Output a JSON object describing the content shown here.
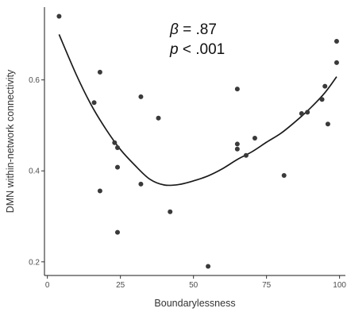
{
  "chart_data": {
    "type": "scatter",
    "xlabel": "Boundarylessness",
    "ylabel": "DMN within-network connectivity",
    "xlim": [
      -1,
      102
    ],
    "ylim": [
      0.17,
      0.76
    ],
    "x_ticks": [
      0,
      25,
      50,
      75,
      100
    ],
    "x_tick_labels": [
      "0",
      "25",
      "50",
      "75",
      "100"
    ],
    "y_ticks": [
      0.2,
      0.4,
      0.6
    ],
    "y_tick_labels": [
      "0.2",
      "0.4",
      "0.6"
    ],
    "grid": false,
    "annotations": [
      {
        "prefix": "β",
        "rest": " = .87"
      },
      {
        "prefix": "p",
        "rest": " < .001"
      }
    ],
    "point_color": "#3a3a3a",
    "line_color": "#1a1a1a",
    "points": [
      {
        "x": 4,
        "y": 0.74
      },
      {
        "x": 16,
        "y": 0.55
      },
      {
        "x": 18,
        "y": 0.617
      },
      {
        "x": 18,
        "y": 0.356
      },
      {
        "x": 23,
        "y": 0.462
      },
      {
        "x": 24,
        "y": 0.451
      },
      {
        "x": 24,
        "y": 0.408
      },
      {
        "x": 24,
        "y": 0.265
      },
      {
        "x": 32,
        "y": 0.563
      },
      {
        "x": 32,
        "y": 0.371
      },
      {
        "x": 38,
        "y": 0.516
      },
      {
        "x": 42,
        "y": 0.31
      },
      {
        "x": 55,
        "y": 0.19
      },
      {
        "x": 65,
        "y": 0.58
      },
      {
        "x": 65,
        "y": 0.459
      },
      {
        "x": 65,
        "y": 0.448
      },
      {
        "x": 68,
        "y": 0.434
      },
      {
        "x": 71,
        "y": 0.472
      },
      {
        "x": 81,
        "y": 0.39
      },
      {
        "x": 87,
        "y": 0.526
      },
      {
        "x": 89,
        "y": 0.529
      },
      {
        "x": 94,
        "y": 0.557
      },
      {
        "x": 95,
        "y": 0.586
      },
      {
        "x": 96,
        "y": 0.503
      },
      {
        "x": 99,
        "y": 0.685
      },
      {
        "x": 99,
        "y": 0.638
      }
    ],
    "fit_line": [
      {
        "x": 4,
        "y": 0.7
      },
      {
        "x": 10,
        "y": 0.61
      },
      {
        "x": 15,
        "y": 0.545
      },
      {
        "x": 20,
        "y": 0.492
      },
      {
        "x": 25,
        "y": 0.447
      },
      {
        "x": 30,
        "y": 0.412
      },
      {
        "x": 35,
        "y": 0.382
      },
      {
        "x": 40,
        "y": 0.369
      },
      {
        "x": 45,
        "y": 0.37
      },
      {
        "x": 50,
        "y": 0.378
      },
      {
        "x": 55,
        "y": 0.389
      },
      {
        "x": 60,
        "y": 0.405
      },
      {
        "x": 65,
        "y": 0.425
      },
      {
        "x": 70,
        "y": 0.442
      },
      {
        "x": 75,
        "y": 0.463
      },
      {
        "x": 80,
        "y": 0.483
      },
      {
        "x": 85,
        "y": 0.509
      },
      {
        "x": 90,
        "y": 0.538
      },
      {
        "x": 95,
        "y": 0.572
      },
      {
        "x": 99,
        "y": 0.607
      }
    ]
  }
}
